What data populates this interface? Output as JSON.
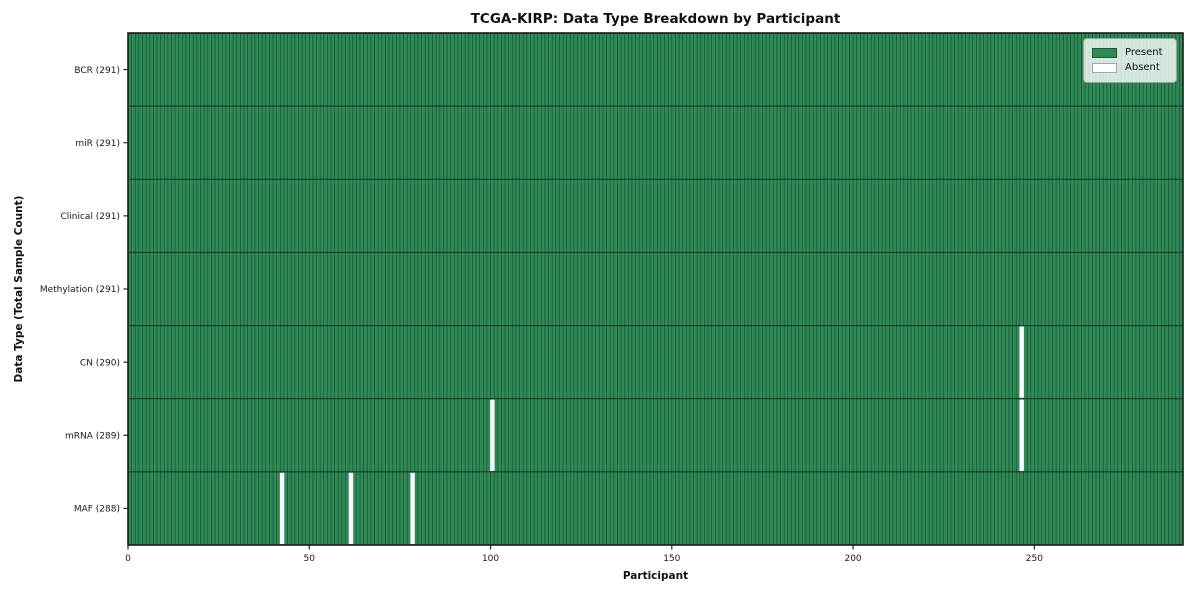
{
  "chart_data": {
    "type": "heatmap",
    "title": "TCGA-KIRP: Data Type Breakdown by Participant",
    "xlabel": "Participant",
    "ylabel": "Data Type (Total Sample Count)",
    "x_ticks": [
      0,
      50,
      100,
      150,
      200,
      250
    ],
    "xlim": [
      0,
      291
    ],
    "n_participants": 291,
    "present_color": "#2e8b57",
    "absent_color": "#ffffff",
    "grid": "per-participant vertical separators and row separators",
    "legend": {
      "position": "upper right",
      "entries": [
        {
          "label": "Present",
          "color": "#2e8b57"
        },
        {
          "label": "Absent",
          "color": "#ffffff"
        }
      ]
    },
    "rows": [
      {
        "label": "BCR (291)",
        "data_type": "BCR",
        "total": 291,
        "absent_participants": []
      },
      {
        "label": "miR (291)",
        "data_type": "miR",
        "total": 291,
        "absent_participants": []
      },
      {
        "label": "Clinical (291)",
        "data_type": "Clinical",
        "total": 291,
        "absent_participants": []
      },
      {
        "label": "Methylation (291)",
        "data_type": "Methylation",
        "total": 291,
        "absent_participants": []
      },
      {
        "label": "CN (290)",
        "data_type": "CN",
        "total": 290,
        "absent_participants": [
          246
        ]
      },
      {
        "label": "mRNA (289)",
        "data_type": "mRNA",
        "total": 289,
        "absent_participants": [
          100,
          246
        ]
      },
      {
        "label": "MAF (288)",
        "data_type": "MAF",
        "total": 288,
        "absent_participants": [
          42,
          61,
          78
        ]
      }
    ]
  }
}
